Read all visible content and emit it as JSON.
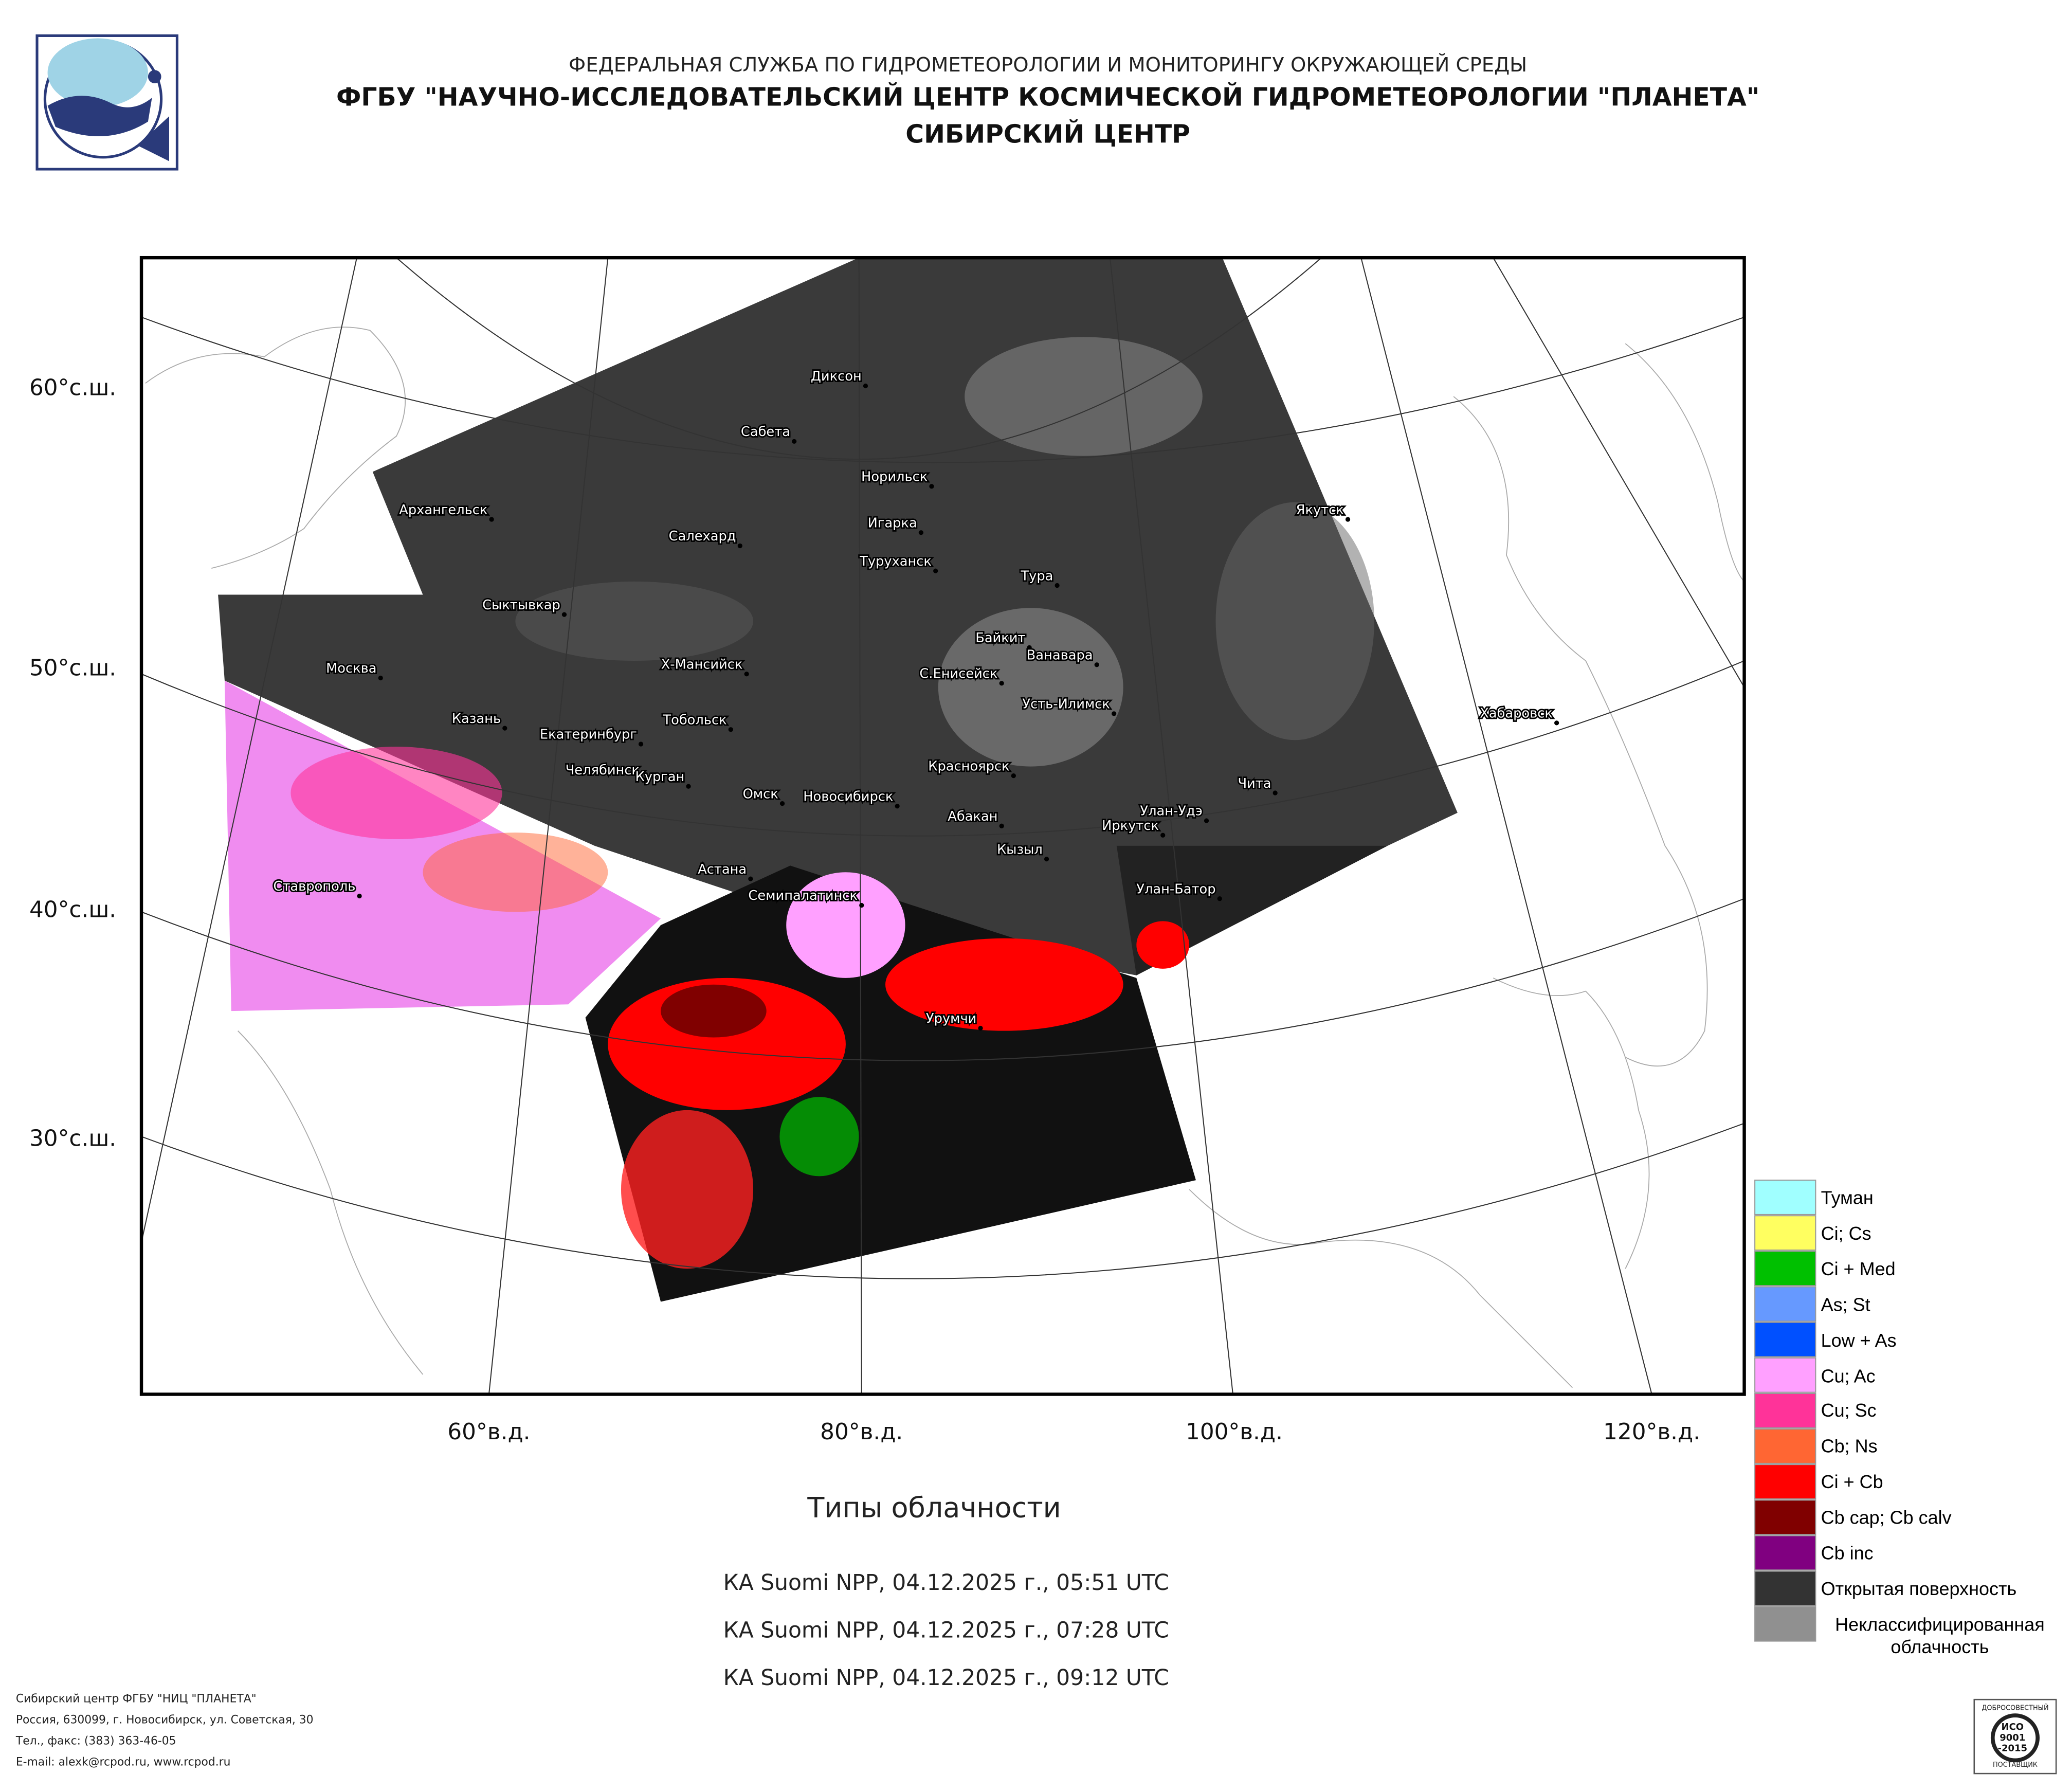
{
  "header": {
    "agency": "ФЕДЕРАЛЬНАЯ СЛУЖБА ПО ГИДРОМЕТЕОРОЛОГИИ И МОНИТОРИНГУ ОКРУЖАЮЩЕЙ СРЕДЫ",
    "institute": "ФГБУ \"НАУЧНО-ИССЛЕДОВАТЕЛЬСКИЙ ЦЕНТР КОСМИЧЕСКОЙ ГИДРОМЕТЕОРОЛОГИИ \"ПЛАНЕТА\"",
    "branch": "СИБИРСКИЙ ЦЕНТР"
  },
  "map": {
    "lat_labels": [
      "60°с.ш.",
      "50°с.ш.",
      "40°с.ш.",
      "30°с.ш."
    ],
    "lon_labels": [
      "60°в.д.",
      "80°в.д.",
      "100°в.д.",
      "120°в.д."
    ],
    "cities": [
      "Диксон",
      "Сабета",
      "Норильск",
      "Архангельск",
      "Салехард",
      "Игарка",
      "Туруханск",
      "Якутск",
      "Тура",
      "Сыктывкар",
      "Байкит",
      "Ванавара",
      "Москва",
      "Х-Мансийск",
      "С.Енисейск",
      "Усть-Илимск",
      "Хабаровск",
      "Казань",
      "Тобольск",
      "Екатеринбург",
      "Челябинск",
      "Курган",
      "Красноярск",
      "Чита",
      "Омск",
      "Новосибирск",
      "Абакан",
      "Улан-Удэ",
      "Иркутск",
      "Кызыл",
      "Астана",
      "Семипалатинск",
      "Ставрополь",
      "Улан-Батор",
      "Урумчи"
    ]
  },
  "legend": {
    "items": [
      {
        "label": "Туман",
        "color": "#a0ffff"
      },
      {
        "label": "Ci; Cs",
        "color": "#ffff60"
      },
      {
        "label": "Ci + Med",
        "color": "#00c000"
      },
      {
        "label": "As; St",
        "color": "#6699ff"
      },
      {
        "label": "Low + As",
        "color": "#0050ff"
      },
      {
        "label": "Cu; Ac",
        "color": "#ffa0ff"
      },
      {
        "label": "Cu; Sc",
        "color": "#ff3399"
      },
      {
        "label": "Cb; Ns",
        "color": "#ff6633"
      },
      {
        "label": "Ci + Cb",
        "color": "#ff0000"
      },
      {
        "label": "Cb cap; Cb calv",
        "color": "#800000"
      },
      {
        "label": "Cb inc",
        "color": "#800080"
      },
      {
        "label": "Открытая поверхность",
        "color": "#333333"
      },
      {
        "label": "Неклассифицированная облачность",
        "color": "#909090"
      }
    ]
  },
  "caption": {
    "title": "Типы облачности",
    "passes": [
      "КА Suomi NPP, 04.12.2025 г., 05:51 UTC",
      "КА Suomi NPP, 04.12.2025 г., 07:28 UTC",
      "КА Suomi NPP, 04.12.2025 г., 09:12 UTC"
    ]
  },
  "footer": {
    "lines": [
      "Сибирский центр ФГБУ \"НИЦ \"ПЛАНЕТА\"",
      "Россия, 630099, г. Новосибирск, ул. Советская, 30",
      "Тел., факс: (383) 363-46-05",
      "E-mail: alexk@rcpod.ru, www.rcpod.ru"
    ]
  },
  "badge": {
    "top": "ДОБРОСОВЕСТНЫЙ",
    "lines": [
      "ИСО",
      "9001",
      "-2015"
    ],
    "bottom": "ПОСТАВЩИК"
  }
}
